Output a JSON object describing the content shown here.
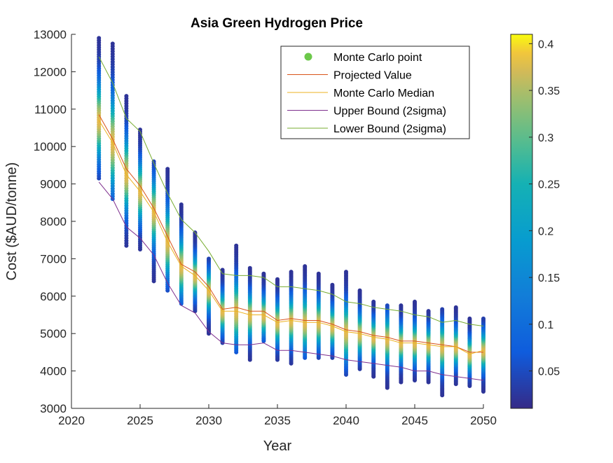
{
  "chart_data": {
    "type": "scatter",
    "title": "Asia Green Hydrogen Price",
    "xlabel": "Year",
    "ylabel": "Cost ($AUD/tonne)",
    "xlim": [
      2020,
      2050
    ],
    "ylim": [
      3000,
      13000
    ],
    "xticks": [
      "2020",
      "2025",
      "2030",
      "2035",
      "2040",
      "2045",
      "2050"
    ],
    "yticks": [
      "3000",
      "4000",
      "5000",
      "6000",
      "7000",
      "8000",
      "9000",
      "10000",
      "11000",
      "12000",
      "13000"
    ],
    "grid": false,
    "legend_position": "top-right",
    "colorbar": {
      "range": [
        0.01,
        0.41
      ],
      "ticks": [
        "0.05",
        "0.1",
        "0.15",
        "0.2",
        "0.25",
        "0.3",
        "0.35",
        "0.4"
      ],
      "colormap": "parula"
    },
    "years": [
      2022,
      2023,
      2024,
      2025,
      2026,
      2027,
      2028,
      2029,
      2030,
      2031,
      2032,
      2033,
      2034,
      2035,
      2036,
      2037,
      2038,
      2039,
      2040,
      2041,
      2042,
      2043,
      2044,
      2045,
      2046,
      2047,
      2048,
      2049,
      2050
    ],
    "series": [
      {
        "name": "Monte Carlo point",
        "kind": "scatter",
        "color": "#6cc84a"
      },
      {
        "name": "Projected Value",
        "kind": "line",
        "color": "#d95319",
        "values": [
          10850,
          10200,
          9400,
          8950,
          8350,
          7600,
          6850,
          6650,
          6250,
          5650,
          5700,
          5600,
          5600,
          5350,
          5400,
          5350,
          5350,
          5250,
          5100,
          5050,
          4950,
          4900,
          4800,
          4800,
          4750,
          4700,
          4650,
          4500,
          4500
        ]
      },
      {
        "name": "Monte Carlo Median",
        "kind": "line",
        "color": "#edb120",
        "values": [
          10700,
          10100,
          9250,
          8800,
          8250,
          7450,
          6800,
          6550,
          6150,
          5600,
          5600,
          5500,
          5500,
          5300,
          5350,
          5300,
          5300,
          5200,
          5050,
          5000,
          4900,
          4850,
          4750,
          4750,
          4700,
          4650,
          4650,
          4450,
          4550
        ]
      },
      {
        "name": "Upper Bound (2sigma)",
        "kind": "line",
        "color": "#7e2f8e",
        "values": [
          9050,
          8600,
          7850,
          7550,
          7100,
          6350,
          5750,
          5550,
          5050,
          4750,
          4700,
          4700,
          4750,
          4550,
          4550,
          4500,
          4450,
          4400,
          4300,
          4250,
          4200,
          4150,
          4100,
          4000,
          4000,
          3900,
          3850,
          3800,
          3750
        ]
      },
      {
        "name": "Lower Bound (2sigma)",
        "kind": "line",
        "color": "#77ac30",
        "values": [
          12400,
          11700,
          10750,
          10400,
          9550,
          8750,
          8050,
          7700,
          7200,
          6600,
          6550,
          6550,
          6500,
          6250,
          6250,
          6200,
          6150,
          6050,
          5850,
          5800,
          5700,
          5650,
          5600,
          5500,
          5450,
          5300,
          5350,
          5250,
          5200
        ]
      }
    ],
    "scatter_min": [
      9150,
      8600,
      7350,
      7250,
      6400,
      6150,
      5800,
      5600,
      5000,
      4750,
      4500,
      4300,
      4800,
      4300,
      4200,
      4350,
      4350,
      4350,
      3900,
      4050,
      3850,
      3550,
      3700,
      3750,
      3700,
      3350,
      3650,
      3600,
      3450
    ],
    "scatter_max": [
      12900,
      12750,
      11350,
      10450,
      9600,
      9400,
      8450,
      7700,
      7000,
      6700,
      7350,
      6750,
      6600,
      6450,
      6650,
      6800,
      6600,
      6300,
      6650,
      6150,
      5850,
      5750,
      5750,
      5850,
      5600,
      5650,
      5700,
      5400,
      5400
    ]
  }
}
